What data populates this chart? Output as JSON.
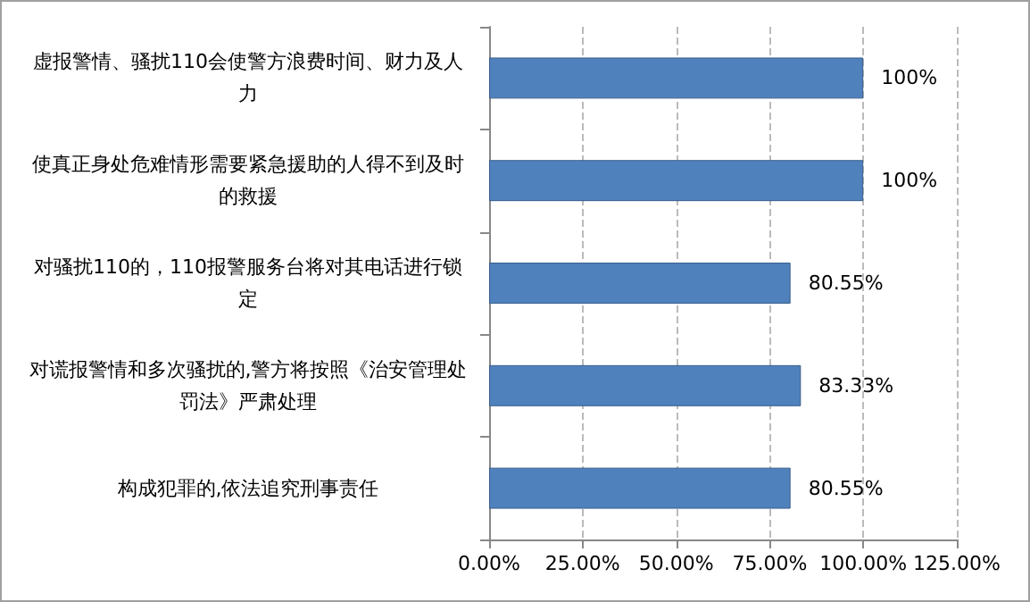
{
  "chart_data": {
    "type": "bar",
    "orientation": "horizontal",
    "categories": [
      "虚报警情、骚扰110会使警方浪费时间、财力及人力",
      "使真正身处危难情形需要紧急援助的人得不到及时的救援",
      "对骚扰110的，110报警服务台将对其电话进行锁定",
      "对谎报警情和多次骚扰的,警方将按照《治安管理处罚法》严肃处理",
      "构成犯罪的,依法追究刑事责任"
    ],
    "values": [
      100,
      100,
      80.55,
      83.33,
      80.55
    ],
    "value_labels": [
      "100%",
      "100%",
      "80.55%",
      "83.33%",
      "80.55%"
    ],
    "color": "#4f81bd",
    "xlim": [
      0,
      125
    ],
    "xticks": [
      {
        "value": 0,
        "label": "0.00%"
      },
      {
        "value": 25,
        "label": "25.00%"
      },
      {
        "value": 50,
        "label": "50.00%"
      },
      {
        "value": 75,
        "label": "75.00%"
      },
      {
        "value": 100,
        "label": "100.00%"
      },
      {
        "value": 125,
        "label": "125.00%"
      }
    ],
    "grid": "x"
  }
}
